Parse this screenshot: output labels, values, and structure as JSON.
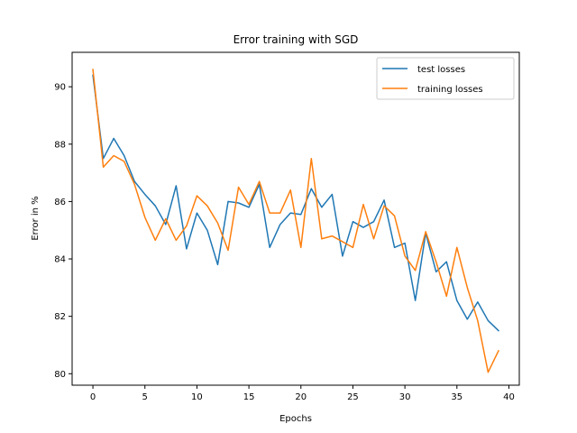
{
  "chart_data": {
    "type": "line",
    "title": "Error training with SGD",
    "xlabel": "Epochs",
    "ylabel": "Error in %",
    "xlim": [
      -2,
      41
    ],
    "ylim": [
      79.6,
      91.2
    ],
    "xticks": [
      0,
      5,
      10,
      15,
      20,
      25,
      30,
      35,
      40
    ],
    "yticks": [
      80,
      82,
      84,
      86,
      88,
      90
    ],
    "grid": false,
    "legend_position": "top-right",
    "x": [
      0,
      1,
      2,
      3,
      4,
      5,
      6,
      7,
      8,
      9,
      10,
      11,
      12,
      13,
      14,
      15,
      16,
      17,
      18,
      19,
      20,
      21,
      22,
      23,
      24,
      25,
      26,
      27,
      28,
      29,
      30,
      31,
      32,
      33,
      34,
      35,
      36,
      37,
      38,
      39
    ],
    "series": [
      {
        "name": "test losses",
        "color": "#1f77b4",
        "values": [
          90.4,
          87.5,
          88.2,
          87.6,
          86.7,
          86.25,
          85.85,
          85.2,
          86.55,
          84.35,
          85.6,
          85.0,
          83.8,
          86.0,
          85.95,
          85.8,
          86.6,
          84.4,
          85.2,
          85.6,
          85.55,
          86.45,
          85.8,
          86.25,
          84.1,
          85.3,
          85.1,
          85.3,
          86.05,
          84.4,
          84.55,
          82.55,
          84.9,
          83.55,
          83.9,
          82.55,
          81.9,
          82.5,
          81.85,
          81.5
        ]
      },
      {
        "name": "training losses",
        "color": "#ff7f0e",
        "values": [
          90.6,
          87.2,
          87.6,
          87.4,
          86.6,
          85.45,
          84.65,
          85.4,
          84.65,
          85.15,
          86.2,
          85.85,
          85.25,
          84.3,
          86.5,
          85.9,
          86.7,
          85.6,
          85.6,
          86.4,
          84.4,
          87.5,
          84.7,
          84.8,
          84.6,
          84.4,
          85.9,
          84.7,
          85.85,
          85.5,
          84.1,
          83.6,
          84.95,
          83.9,
          82.7,
          84.4,
          83.0,
          81.85,
          80.05,
          80.8
        ]
      }
    ]
  }
}
